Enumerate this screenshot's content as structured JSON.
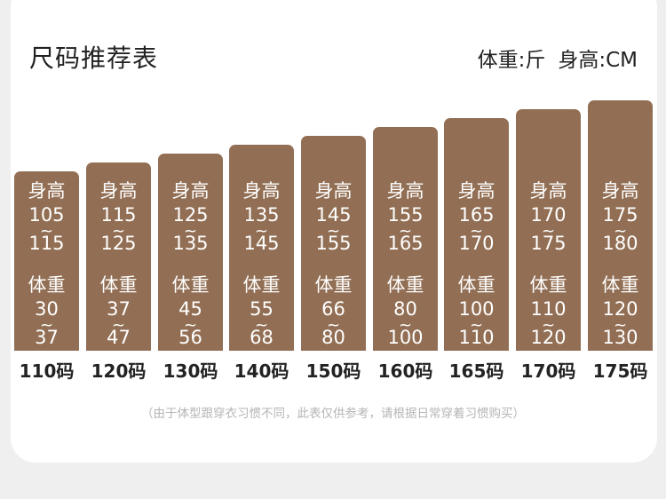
{
  "header": {
    "title": "尺码推荐表",
    "weight_unit": "体重:斤",
    "height_unit": "身高:CM"
  },
  "labels": {
    "height": "身高",
    "weight": "体重",
    "tilde": "~"
  },
  "columns": [
    {
      "size": "110码",
      "height_min": "105",
      "height_max": "115",
      "weight_min": "30",
      "weight_max": "37"
    },
    {
      "size": "120码",
      "height_min": "115",
      "height_max": "125",
      "weight_min": "37",
      "weight_max": "47"
    },
    {
      "size": "130码",
      "height_min": "125",
      "height_max": "135",
      "weight_min": "45",
      "weight_max": "56"
    },
    {
      "size": "140码",
      "height_min": "135",
      "height_max": "145",
      "weight_min": "55",
      "weight_max": "68"
    },
    {
      "size": "150码",
      "height_min": "145",
      "height_max": "155",
      "weight_min": "66",
      "weight_max": "80"
    },
    {
      "size": "160码",
      "height_min": "155",
      "height_max": "165",
      "weight_min": "80",
      "weight_max": "100"
    },
    {
      "size": "165码",
      "height_min": "165",
      "height_max": "170",
      "weight_min": "100",
      "weight_max": "110"
    },
    {
      "size": "170码",
      "height_min": "170",
      "height_max": "175",
      "weight_min": "110",
      "weight_max": "120"
    },
    {
      "size": "175码",
      "height_min": "175",
      "height_max": "180",
      "weight_min": "120",
      "weight_max": "130"
    }
  ],
  "footnote": "（由于体型跟穿衣习惯不同，此表仅供参考，请根据日常穿着习惯购买）",
  "colors": {
    "bar": "#926f54",
    "background": "#efefef",
    "card": "#ffffff",
    "footnote": "#b5b5b5"
  }
}
